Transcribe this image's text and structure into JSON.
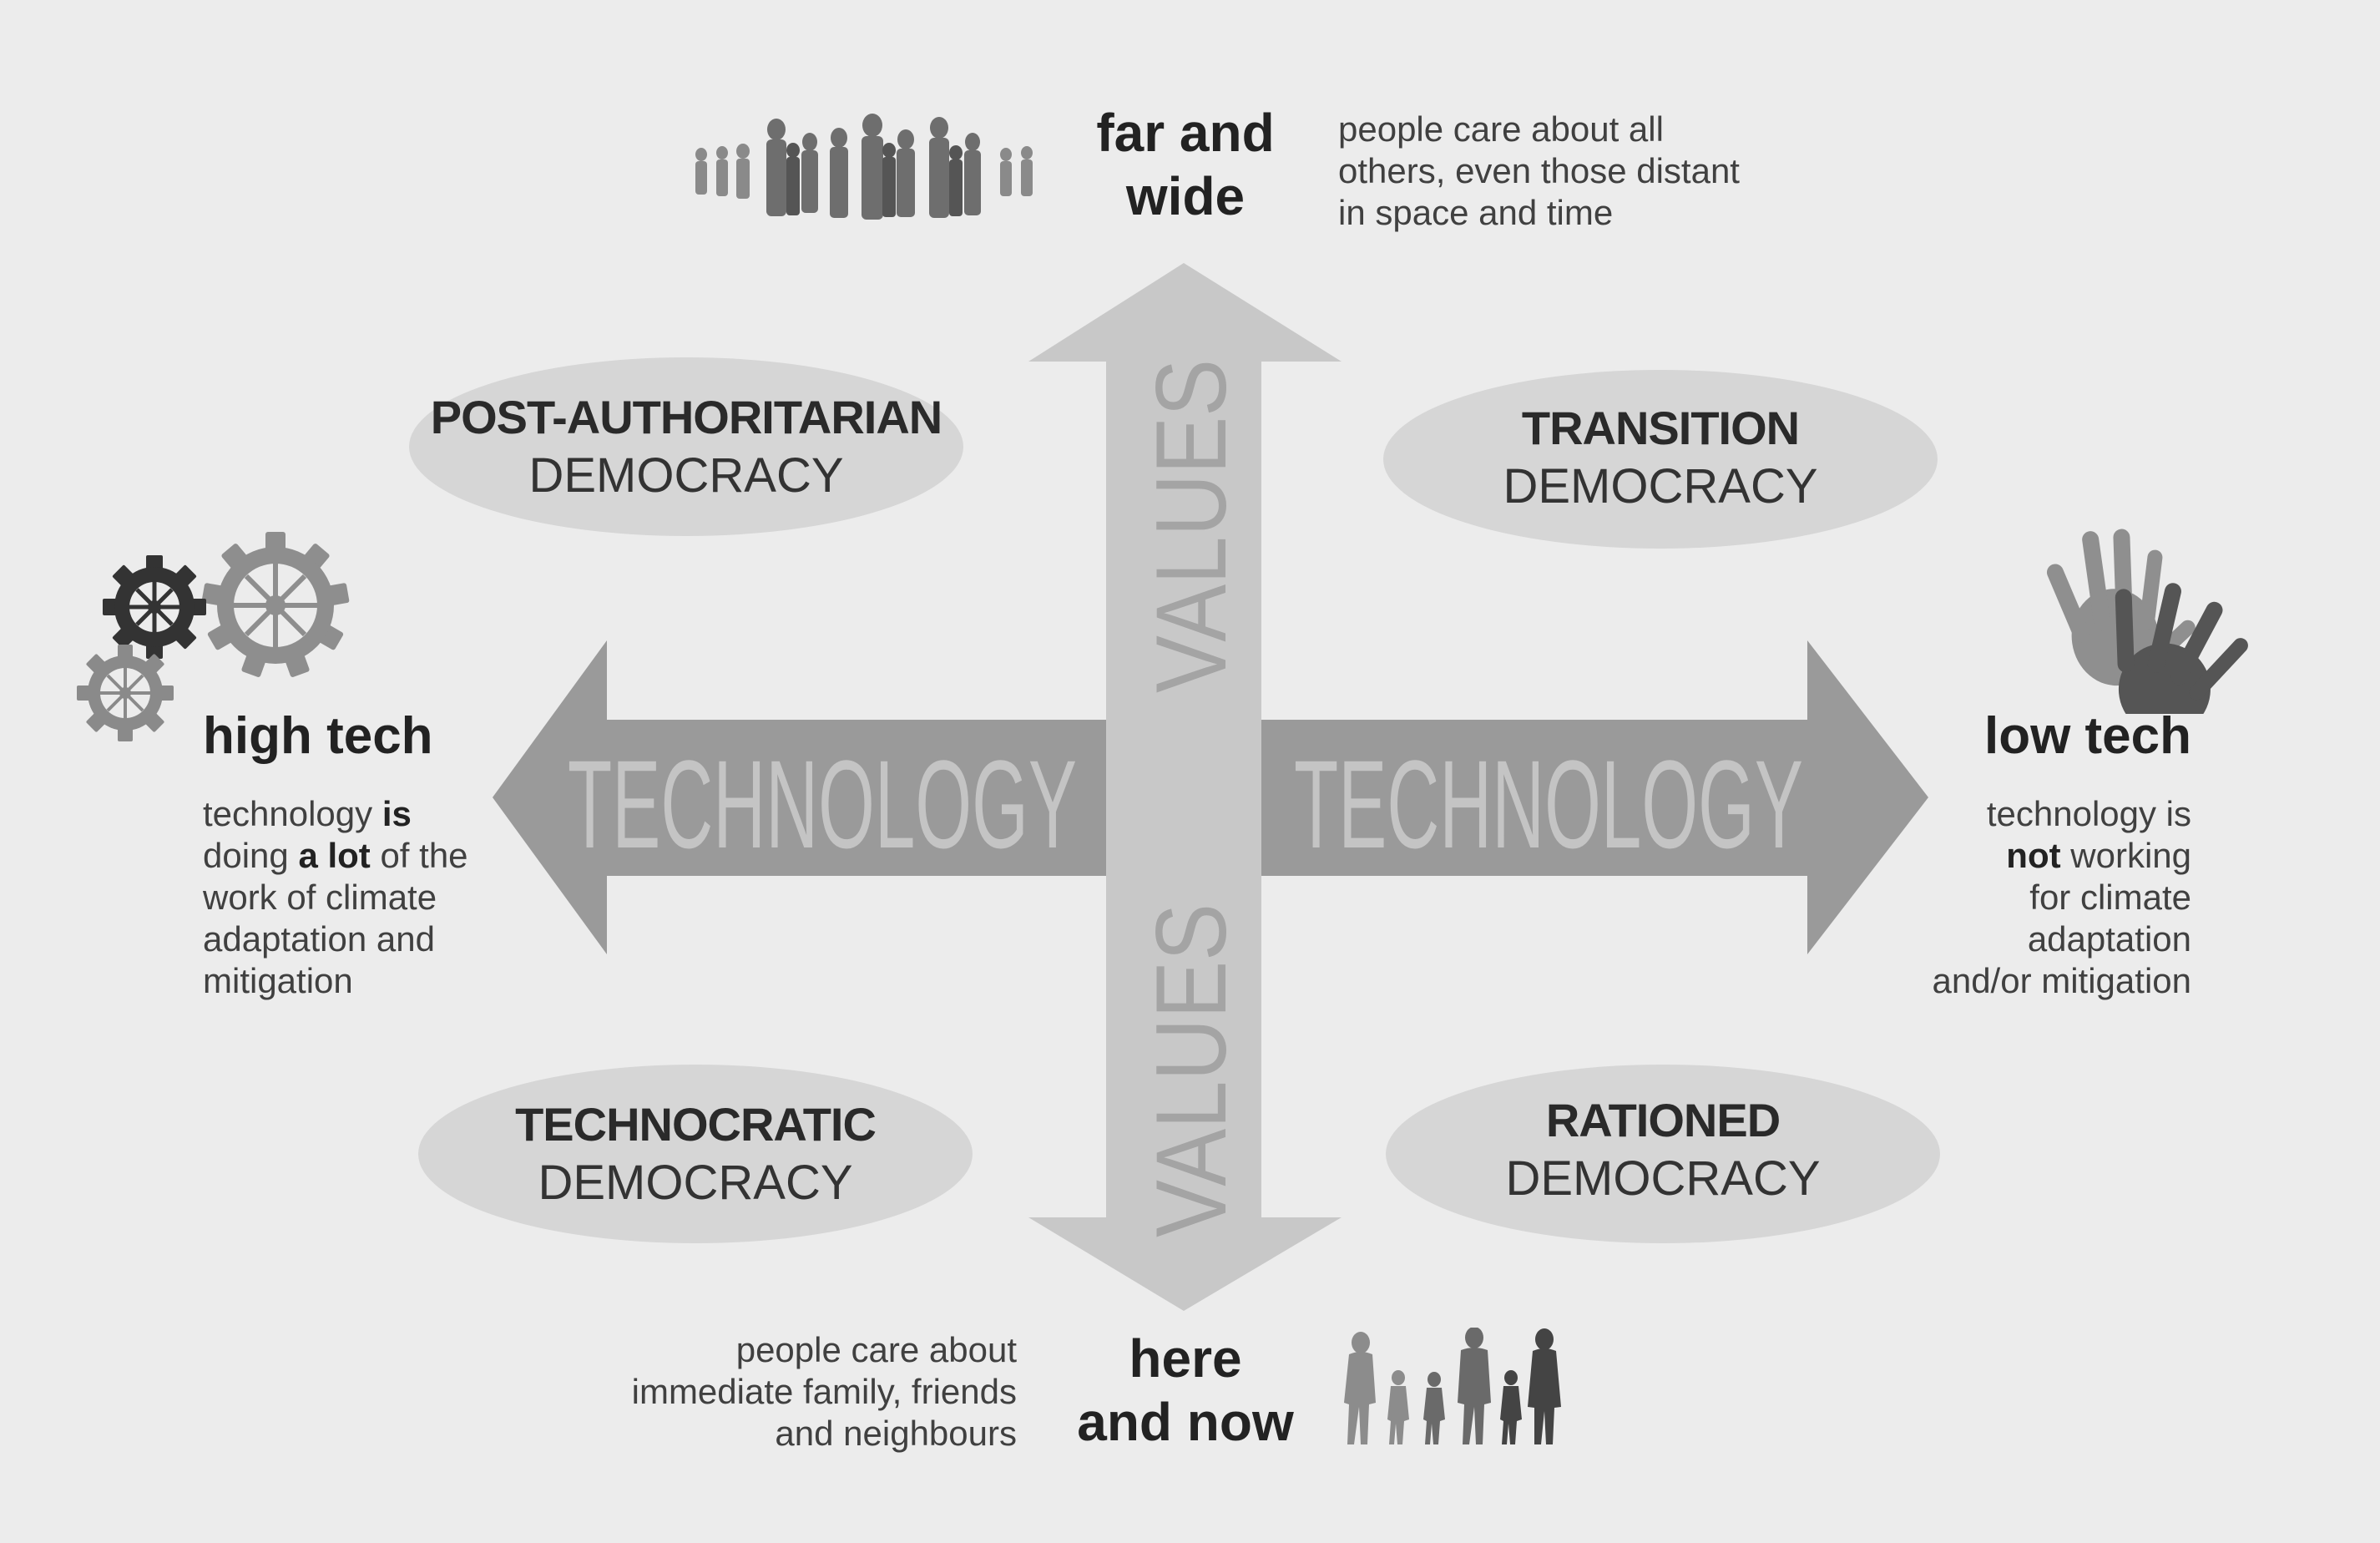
{
  "arrow_labels": {
    "technology_left": "TECHNOLOGY",
    "technology_right": "TECHNOLOGY",
    "values_top": "VALUES",
    "values_bottom": "VALUES"
  },
  "poles": {
    "top": {
      "line1": "far and",
      "line2": "wide",
      "desc_lines": [
        "people care about all",
        "others, even those distant",
        "in space and time"
      ]
    },
    "bottom": {
      "line1": "here",
      "line2": "and now",
      "desc_lines": [
        "people care about",
        "immediate family, friends",
        "and neighbours"
      ]
    },
    "left": {
      "title": "high tech",
      "desc_lines": [
        [
          {
            "t": "technology ",
            "b": false
          },
          {
            "t": "is",
            "b": true
          }
        ],
        [
          {
            "t": "doing ",
            "b": false
          },
          {
            "t": "a lot",
            "b": true
          },
          {
            "t": " of the",
            "b": false
          }
        ],
        [
          {
            "t": "work of climate",
            "b": false
          }
        ],
        [
          {
            "t": "adaptation and",
            "b": false
          }
        ],
        [
          {
            "t": "mitigation",
            "b": false
          }
        ]
      ]
    },
    "right": {
      "title": "low tech",
      "desc_lines": [
        [
          {
            "t": "technology is",
            "b": false
          }
        ],
        [
          {
            "t": "not",
            "b": true
          },
          {
            "t": " working",
            "b": false
          }
        ],
        [
          {
            "t": "for climate",
            "b": false
          }
        ],
        [
          {
            "t": "adaptation",
            "b": false
          }
        ],
        [
          {
            "t": "and/or mitigation",
            "b": false
          }
        ]
      ]
    }
  },
  "quadrants": {
    "top_left": {
      "bold": "POST-AUTHORITARIAN",
      "normal": "DEMOCRACY"
    },
    "top_right": {
      "bold": "TRANSITION",
      "normal": "DEMOCRACY"
    },
    "bottom_left": {
      "bold": "TECHNOCRATIC",
      "normal": "DEMOCRACY"
    },
    "bottom_right": {
      "bold": "RATIONED",
      "normal": "DEMOCRACY"
    }
  },
  "colors": {
    "background": "#ececec",
    "arrow_horizontal": "#9a9a9a",
    "arrow_vertical": "#c8c8c8",
    "ellipse": "#d6d6d6",
    "arrow_text_horizontal": "#c4c4c4",
    "arrow_text_vertical": "#a4a4a4"
  },
  "icons": {
    "top": "crowd-silhouette-icon",
    "bottom": "family-silhouette-icon",
    "left": "gears-icon",
    "right": "hands-icon"
  }
}
